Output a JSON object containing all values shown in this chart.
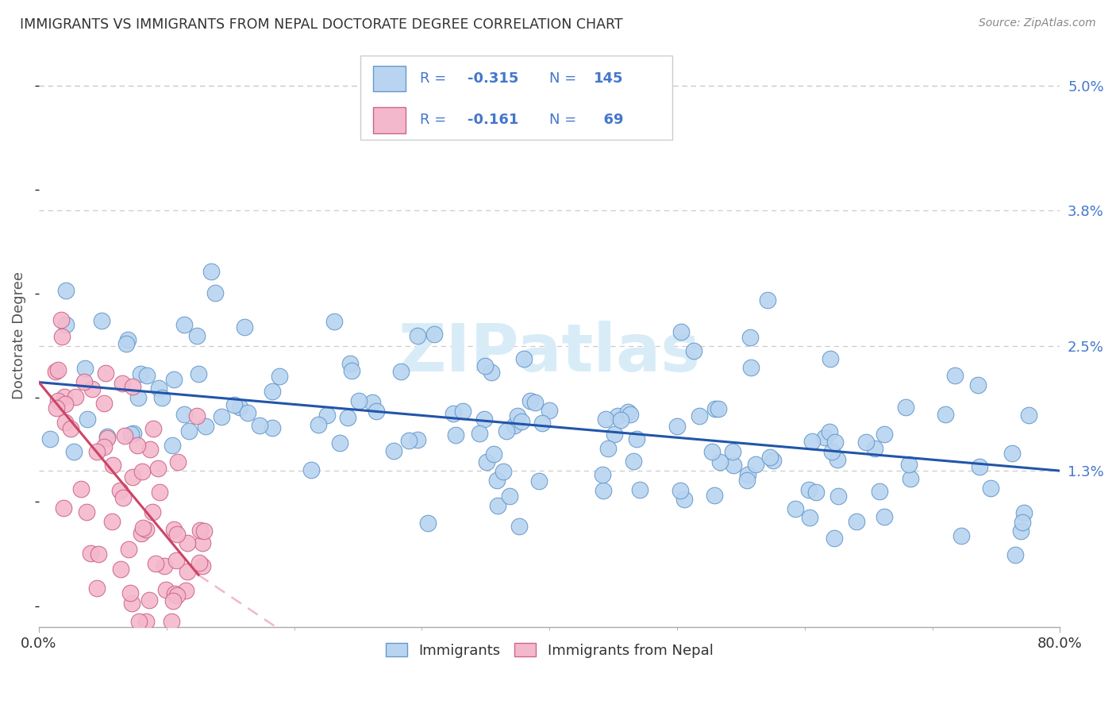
{
  "title": "IMMIGRANTS VS IMMIGRANTS FROM NEPAL DOCTORATE DEGREE CORRELATION CHART",
  "source": "Source: ZipAtlas.com",
  "ylabel": "Doctorate Degree",
  "ytick_values": [
    1.3,
    2.5,
    3.8,
    5.0
  ],
  "xmin": 0.0,
  "xmax": 80.0,
  "ymin": -0.2,
  "ymax": 5.4,
  "blue_scatter_color": "#b8d4f0",
  "blue_edge_color": "#6699cc",
  "pink_scatter_color": "#f4b8cc",
  "pink_edge_color": "#cc6688",
  "blue_line_color": "#2255aa",
  "pink_line_color": "#cc4466",
  "pink_dash_color": "#f0b8cc",
  "watermark_color": "#d8ecf8",
  "grid_color": "#cccccc",
  "legend_box_color": "#e8e8e8",
  "legend_text_color": "#4477cc",
  "title_color": "#333333",
  "source_color": "#888888",
  "ylabel_color": "#555555",
  "xtick_color": "#333333",
  "legend_R_color": "#4477cc",
  "legend_N_color": "#4477cc"
}
